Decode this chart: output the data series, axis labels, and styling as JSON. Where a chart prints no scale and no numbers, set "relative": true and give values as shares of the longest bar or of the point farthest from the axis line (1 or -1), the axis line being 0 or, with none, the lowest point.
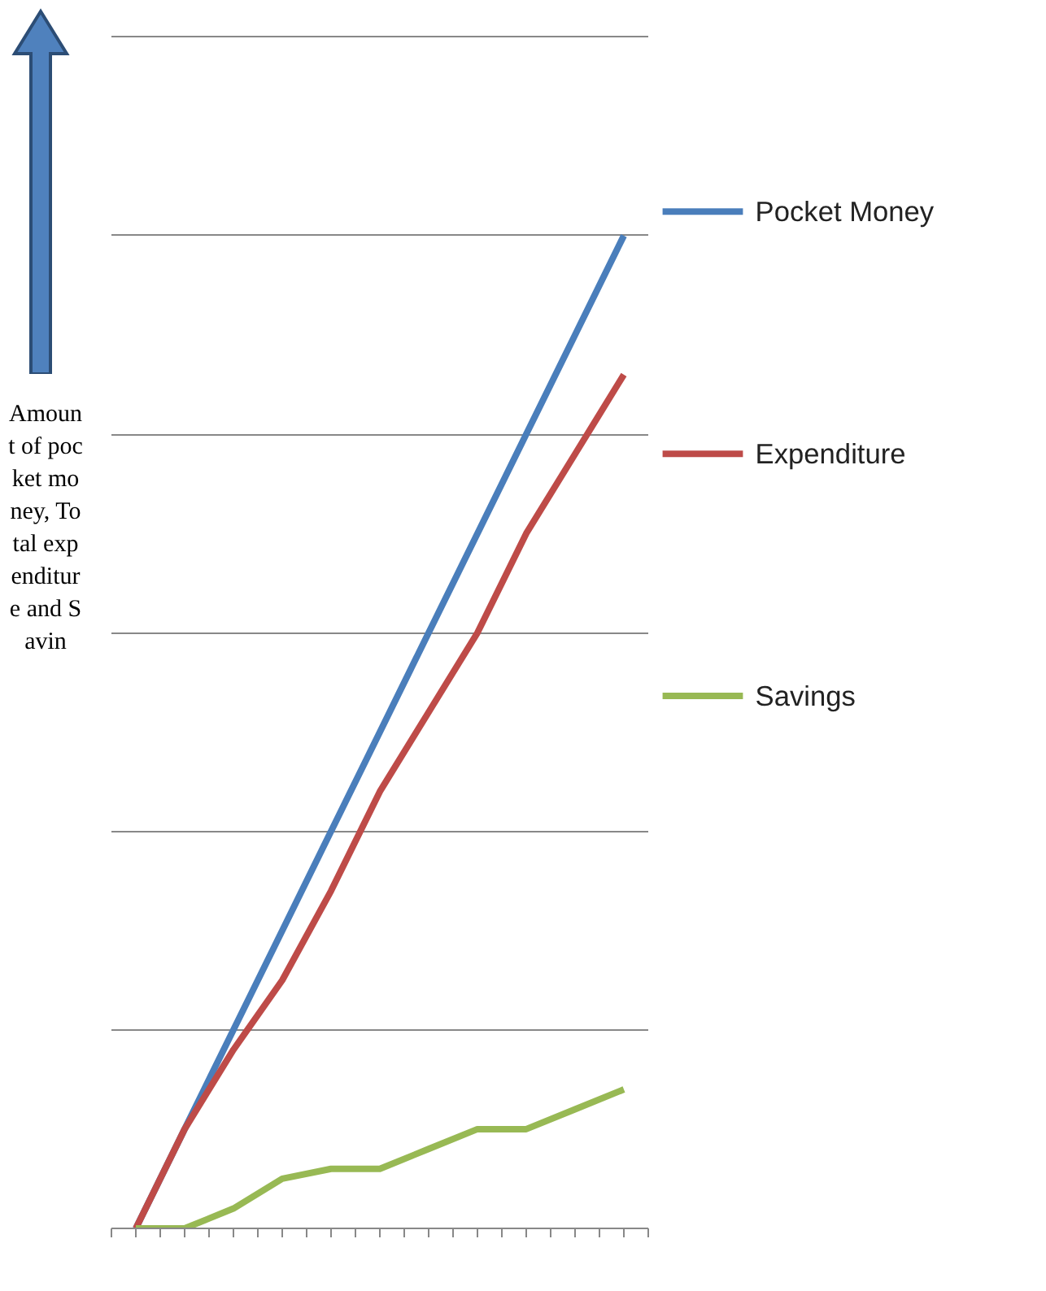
{
  "chart_data": {
    "type": "line",
    "relative": true,
    "ylabel": "Amount of pocket money, Total expenditure and Savin",
    "categories": [
      null,
      null,
      null,
      null,
      null,
      null,
      null,
      null,
      null,
      null,
      null
    ],
    "grid": "y",
    "legend": "right",
    "line_style": "solid",
    "marker": "none",
    "series": [
      {
        "name": "Pocket Money",
        "color": "#4a7ebb",
        "values": [
          0,
          0.1,
          0.2,
          0.3,
          0.4,
          0.5,
          0.6,
          0.7,
          0.8,
          0.9,
          1.0
        ]
      },
      {
        "name": "Expenditure",
        "color": "#be4b48",
        "values": [
          0,
          0.1,
          0.18,
          0.25,
          0.34,
          0.44,
          0.52,
          0.6,
          0.7,
          0.78,
          0.86
        ]
      },
      {
        "name": "Savings",
        "color": "#98b954",
        "values": [
          0,
          0,
          0.02,
          0.05,
          0.06,
          0.06,
          0.08,
          0.1,
          0.1,
          0.12,
          0.14
        ]
      }
    ]
  }
}
